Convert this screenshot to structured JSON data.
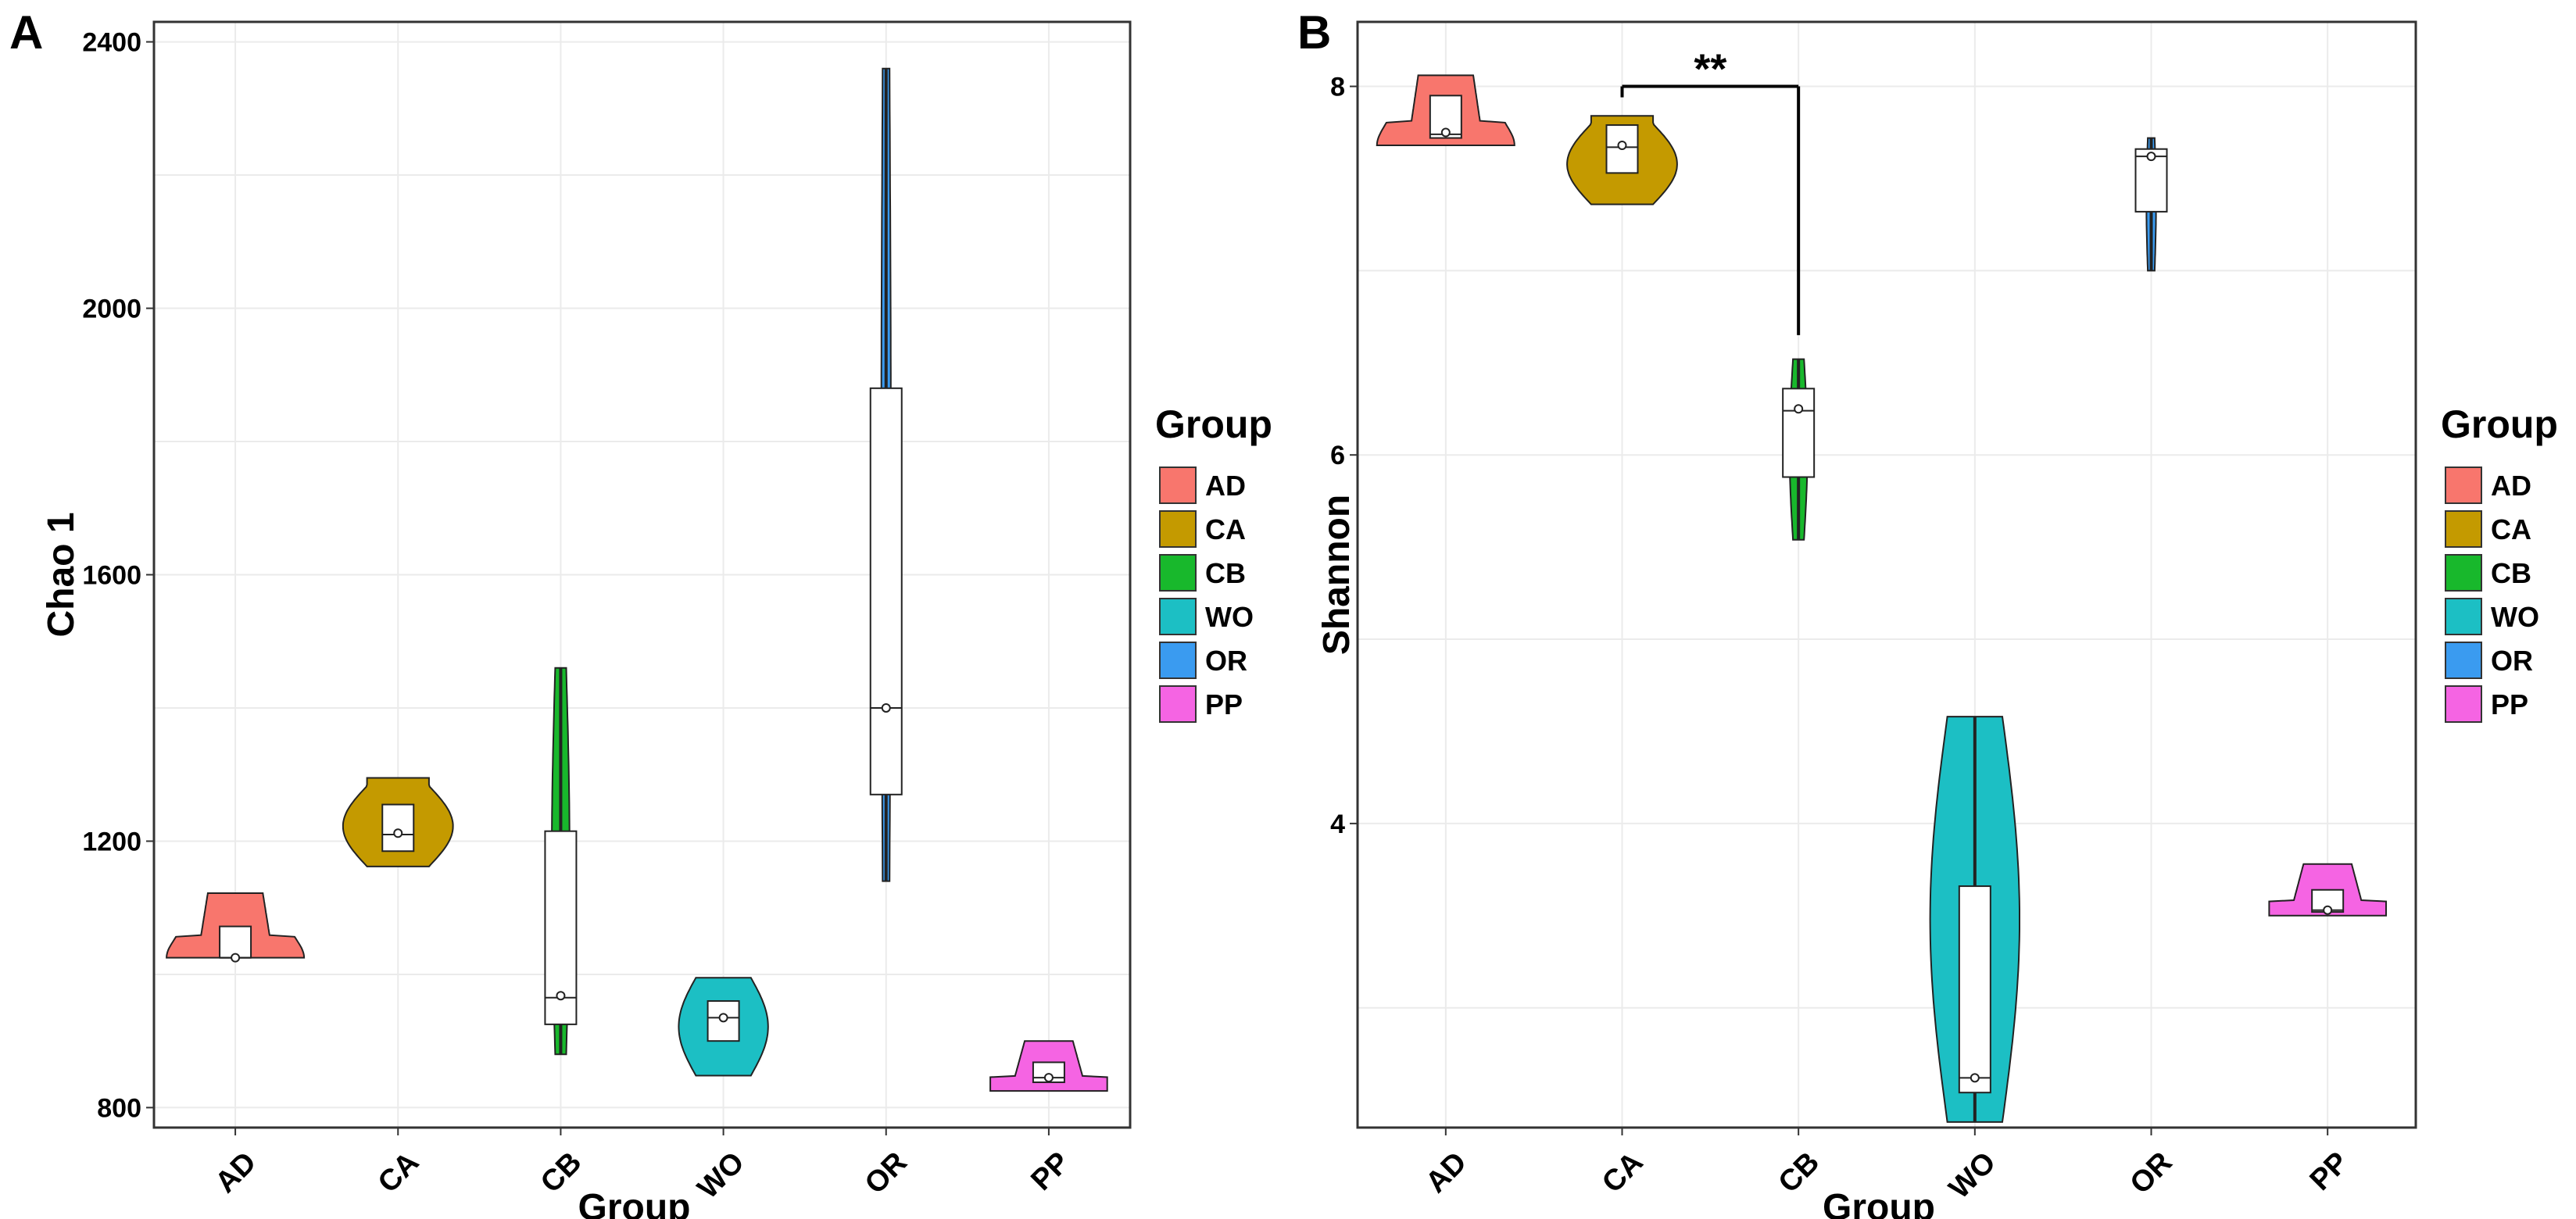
{
  "groups": [
    "AD",
    "CA",
    "CB",
    "WO",
    "OR",
    "PP"
  ],
  "colors": {
    "AD": "#F8766D",
    "CA": "#C49A00",
    "CB": "#18B82C",
    "WO": "#1CBFC4",
    "OR": "#3A9BF0",
    "PP": "#F564E3"
  },
  "chart_data": [
    {
      "panel": "A",
      "type": "violin+box",
      "title": "",
      "xlabel": "Group",
      "ylabel": "Chao 1",
      "ylim": [
        770,
        2430
      ],
      "yticks": [
        800,
        1200,
        1600,
        2000,
        2400
      ],
      "categories": [
        "AD",
        "CA",
        "CB",
        "WO",
        "OR",
        "PP"
      ],
      "legend": {
        "title": "Group",
        "entries": [
          "AD",
          "CA",
          "CB",
          "WO",
          "OR",
          "PP"
        ],
        "position": "right"
      },
      "series": [
        {
          "group": "AD",
          "min": 1025,
          "max": 1122,
          "q1": 1025,
          "median": 1025,
          "q3": 1072,
          "mean": 1025,
          "whisker_low": 1025,
          "whisker_high": 1072
        },
        {
          "group": "CA",
          "min": 1162,
          "max": 1295,
          "q1": 1185,
          "median": 1210,
          "q3": 1255,
          "mean": 1212,
          "whisker_low": 1185,
          "whisker_high": 1255
        },
        {
          "group": "CB",
          "min": 880,
          "max": 1460,
          "q1": 925,
          "median": 965,
          "q3": 1215,
          "mean": 968,
          "whisker_low": 880,
          "whisker_high": 1460
        },
        {
          "group": "WO",
          "min": 848,
          "max": 995,
          "q1": 900,
          "median": 935,
          "q3": 960,
          "mean": 935,
          "whisker_low": 900,
          "whisker_high": 960
        },
        {
          "group": "OR",
          "min": 1140,
          "max": 2360,
          "q1": 1270,
          "median": 1400,
          "q3": 1880,
          "mean": 1400,
          "whisker_low": 1140,
          "whisker_high": 2360
        },
        {
          "group": "PP",
          "min": 825,
          "max": 900,
          "q1": 838,
          "median": 845,
          "q3": 868,
          "mean": 845,
          "whisker_low": 838,
          "whisker_high": 868
        }
      ]
    },
    {
      "panel": "B",
      "type": "violin+box",
      "title": "",
      "xlabel": "Group",
      "ylabel": "Shannon",
      "ylim": [
        2.35,
        8.35
      ],
      "yticks": [
        4,
        6,
        8
      ],
      "categories": [
        "AD",
        "CA",
        "CB",
        "WO",
        "OR",
        "PP"
      ],
      "legend": {
        "title": "Group",
        "entries": [
          "AD",
          "CA",
          "CB",
          "WO",
          "OR",
          "PP"
        ],
        "position": "right"
      },
      "annotation": {
        "from": "CA",
        "to": "CB",
        "label": "**",
        "y_level": 8.0,
        "drop_to": 6.65
      },
      "series": [
        {
          "group": "AD",
          "min": 7.68,
          "max": 8.06,
          "q1": 7.72,
          "median": 7.74,
          "q3": 7.95,
          "mean": 7.75,
          "whisker_low": 7.72,
          "whisker_high": 7.95
        },
        {
          "group": "CA",
          "min": 7.36,
          "max": 7.84,
          "q1": 7.53,
          "median": 7.67,
          "q3": 7.79,
          "mean": 7.68,
          "whisker_low": 7.53,
          "whisker_high": 7.79
        },
        {
          "group": "CB",
          "min": 5.54,
          "max": 6.52,
          "q1": 5.88,
          "median": 6.24,
          "q3": 6.36,
          "mean": 6.25,
          "whisker_low": 5.54,
          "whisker_high": 6.52
        },
        {
          "group": "WO",
          "min": 2.38,
          "max": 4.58,
          "q1": 2.54,
          "median": 2.62,
          "q3": 3.66,
          "mean": 2.62,
          "whisker_low": 2.38,
          "whisker_high": 4.58
        },
        {
          "group": "OR",
          "min": 7.0,
          "max": 7.72,
          "q1": 7.32,
          "median": 7.62,
          "q3": 7.66,
          "mean": 7.62,
          "whisker_low": 7.0,
          "whisker_high": 7.72
        },
        {
          "group": "PP",
          "min": 3.5,
          "max": 3.78,
          "q1": 3.52,
          "median": 3.53,
          "q3": 3.64,
          "mean": 3.53,
          "whisker_low": 3.52,
          "whisker_high": 3.64
        }
      ]
    }
  ]
}
